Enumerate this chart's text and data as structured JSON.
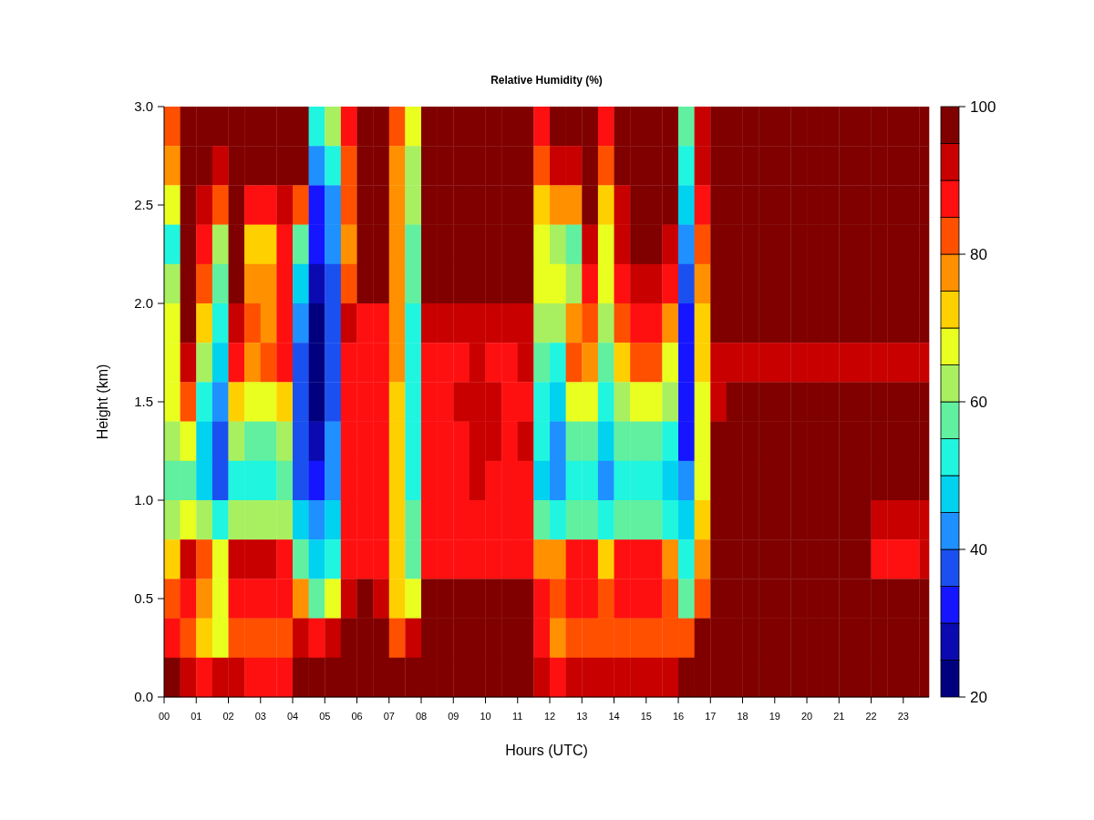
{
  "chart_data": {
    "type": "heatmap",
    "title": "Relative Humidity (%)",
    "xlabel": "Hours (UTC)",
    "ylabel": "Height (km)",
    "clabel": null,
    "x": [
      0.25,
      0.75,
      1.25,
      1.75,
      2.25,
      2.75,
      3.25,
      3.75,
      4.25,
      4.75,
      5.25,
      5.75,
      6.25,
      6.75,
      7.25,
      7.75,
      8.25,
      8.75,
      9.25,
      9.75,
      10.25,
      10.75,
      11.25,
      11.75,
      12.25,
      12.75,
      13.25,
      13.75,
      14.25,
      14.75,
      15.25,
      15.75,
      16.25,
      16.75,
      17.25,
      17.75,
      18.25,
      18.75,
      19.25,
      19.75,
      20.25,
      20.75,
      21.25,
      21.75,
      22.25,
      22.75,
      23.25,
      23.75
    ],
    "y": [
      2.9,
      2.7,
      2.5,
      2.3,
      2.1,
      1.9,
      1.7,
      1.5,
      1.3,
      1.1,
      0.9,
      0.7,
      0.5,
      0.3,
      0.1
    ],
    "xlim": [
      0,
      23.8
    ],
    "xticks": [
      {
        "value": 0,
        "label": "00"
      },
      {
        "value": 1,
        "label": "01"
      },
      {
        "value": 2,
        "label": "02"
      },
      {
        "value": 3,
        "label": "03"
      },
      {
        "value": 4,
        "label": "04"
      },
      {
        "value": 5,
        "label": "05"
      },
      {
        "value": 6,
        "label": "06"
      },
      {
        "value": 7,
        "label": "07"
      },
      {
        "value": 8,
        "label": "08"
      },
      {
        "value": 9,
        "label": "09"
      },
      10,
      11,
      12,
      13,
      14,
      15,
      16,
      17,
      18,
      19,
      20,
      21,
      22,
      23
    ],
    "ylim": [
      0,
      3
    ],
    "yticks": [
      {
        "value": 0,
        "label": "0.0"
      },
      0.5,
      {
        "value": 1,
        "label": "1.0"
      },
      1.5,
      {
        "value": 2,
        "label": "2.0"
      },
      2.5,
      {
        "value": 3,
        "label": "3.0"
      }
    ],
    "clim": [
      20,
      100
    ],
    "cticks": [
      20,
      40,
      60,
      80,
      100
    ],
    "colors": [
      "#00007f",
      "#0a0ab0",
      "#1515ff",
      "#1a50f0",
      "#1e90ff",
      "#00d2f0",
      "#20f5e0",
      "#60f0a0",
      "#a8f060",
      "#e8ff20",
      "#ffd000",
      "#ff9000",
      "#ff5000",
      "#ff1010",
      "#c80000",
      "#800000"
    ],
    "cells": [
      [
        85,
        100,
        100,
        100,
        100,
        100,
        100,
        100,
        100,
        55,
        65,
        90,
        100,
        100,
        85,
        70,
        100,
        100,
        100,
        100,
        100,
        100,
        100,
        90,
        100,
        100,
        100,
        90,
        100,
        100,
        100,
        100,
        60,
        95,
        100,
        100,
        100,
        100,
        100,
        100,
        100,
        100,
        100,
        100,
        100,
        100,
        100,
        100
      ],
      [
        80,
        100,
        100,
        95,
        100,
        100,
        100,
        100,
        100,
        45,
        55,
        85,
        100,
        100,
        80,
        65,
        100,
        100,
        100,
        100,
        100,
        100,
        100,
        85,
        95,
        95,
        100,
        85,
        100,
        100,
        100,
        100,
        55,
        95,
        100,
        100,
        100,
        100,
        100,
        100,
        100,
        100,
        100,
        100,
        100,
        100,
        100,
        100
      ],
      [
        70,
        100,
        95,
        85,
        100,
        90,
        90,
        95,
        85,
        35,
        45,
        85,
        100,
        100,
        80,
        65,
        100,
        100,
        100,
        100,
        100,
        100,
        100,
        75,
        80,
        80,
        100,
        75,
        95,
        100,
        100,
        100,
        50,
        90,
        100,
        100,
        100,
        100,
        100,
        100,
        100,
        100,
        100,
        100,
        100,
        100,
        100,
        100
      ],
      [
        55,
        100,
        90,
        65,
        100,
        75,
        75,
        90,
        60,
        35,
        45,
        80,
        100,
        100,
        80,
        60,
        100,
        100,
        100,
        100,
        100,
        100,
        100,
        70,
        65,
        60,
        95,
        70,
        95,
        100,
        100,
        95,
        45,
        85,
        100,
        100,
        100,
        100,
        100,
        100,
        100,
        100,
        100,
        100,
        100,
        100,
        100,
        100
      ],
      [
        65,
        100,
        85,
        60,
        100,
        80,
        80,
        90,
        50,
        30,
        40,
        85,
        100,
        100,
        80,
        60,
        100,
        100,
        100,
        100,
        100,
        100,
        100,
        70,
        70,
        65,
        90,
        70,
        90,
        95,
        95,
        90,
        40,
        80,
        100,
        100,
        100,
        100,
        100,
        100,
        100,
        100,
        100,
        100,
        100,
        100,
        100,
        100
      ],
      [
        70,
        100,
        75,
        55,
        95,
        85,
        80,
        90,
        45,
        25,
        40,
        95,
        90,
        90,
        80,
        55,
        95,
        95,
        95,
        95,
        95,
        95,
        95,
        65,
        65,
        80,
        85,
        65,
        85,
        90,
        90,
        80,
        35,
        75,
        100,
        100,
        100,
        100,
        100,
        100,
        100,
        100,
        100,
        100,
        100,
        100,
        100,
        100
      ],
      [
        70,
        95,
        65,
        50,
        90,
        80,
        85,
        90,
        40,
        25,
        40,
        90,
        90,
        90,
        80,
        55,
        90,
        90,
        90,
        95,
        90,
        90,
        95,
        60,
        55,
        85,
        80,
        60,
        75,
        85,
        85,
        70,
        35,
        75,
        95,
        95,
        95,
        95,
        95,
        95,
        95,
        95,
        95,
        95,
        95,
        95,
        95,
        95
      ],
      [
        70,
        85,
        55,
        45,
        75,
        70,
        70,
        75,
        40,
        25,
        40,
        90,
        90,
        90,
        75,
        55,
        90,
        90,
        95,
        95,
        95,
        90,
        90,
        55,
        50,
        70,
        70,
        55,
        65,
        70,
        70,
        65,
        35,
        70,
        95,
        100,
        100,
        100,
        100,
        100,
        100,
        100,
        100,
        100,
        100,
        100,
        100,
        100
      ],
      [
        65,
        70,
        50,
        40,
        65,
        60,
        60,
        65,
        40,
        30,
        45,
        90,
        90,
        90,
        75,
        55,
        90,
        90,
        90,
        95,
        95,
        90,
        95,
        55,
        45,
        60,
        60,
        50,
        60,
        60,
        60,
        55,
        35,
        70,
        100,
        100,
        100,
        100,
        100,
        100,
        100,
        100,
        100,
        100,
        100,
        100,
        100,
        100
      ],
      [
        60,
        60,
        50,
        40,
        55,
        55,
        55,
        60,
        40,
        35,
        45,
        90,
        90,
        90,
        75,
        55,
        90,
        90,
        90,
        95,
        90,
        90,
        90,
        50,
        45,
        55,
        55,
        45,
        55,
        55,
        55,
        50,
        45,
        70,
        100,
        100,
        100,
        100,
        100,
        100,
        100,
        100,
        100,
        100,
        100,
        100,
        100,
        100
      ],
      [
        65,
        70,
        65,
        55,
        65,
        65,
        65,
        65,
        50,
        45,
        50,
        90,
        90,
        90,
        75,
        60,
        90,
        90,
        90,
        90,
        90,
        90,
        90,
        60,
        55,
        60,
        60,
        55,
        60,
        60,
        60,
        55,
        50,
        75,
        100,
        100,
        100,
        100,
        100,
        100,
        100,
        100,
        100,
        100,
        95,
        95,
        95,
        95
      ],
      [
        75,
        95,
        85,
        70,
        95,
        95,
        95,
        90,
        60,
        50,
        55,
        90,
        90,
        90,
        75,
        60,
        90,
        90,
        90,
        90,
        90,
        90,
        90,
        80,
        80,
        90,
        90,
        75,
        90,
        90,
        90,
        80,
        55,
        80,
        100,
        100,
        100,
        100,
        100,
        100,
        100,
        100,
        100,
        100,
        90,
        90,
        90,
        95
      ],
      [
        85,
        90,
        80,
        70,
        90,
        90,
        90,
        90,
        80,
        60,
        70,
        95,
        100,
        95,
        75,
        70,
        100,
        100,
        100,
        100,
        100,
        100,
        100,
        90,
        85,
        90,
        90,
        85,
        90,
        90,
        90,
        85,
        60,
        85,
        100,
        100,
        100,
        100,
        100,
        100,
        100,
        100,
        100,
        100,
        100,
        100,
        100,
        100
      ],
      [
        90,
        85,
        75,
        70,
        85,
        85,
        85,
        85,
        95,
        90,
        95,
        100,
        100,
        100,
        85,
        95,
        100,
        100,
        100,
        100,
        100,
        100,
        100,
        90,
        80,
        85,
        85,
        85,
        85,
        85,
        85,
        85,
        85,
        100,
        100,
        100,
        100,
        100,
        100,
        100,
        100,
        100,
        100,
        100,
        100,
        100,
        100,
        100
      ],
      [
        100,
        95,
        90,
        95,
        95,
        90,
        90,
        90,
        100,
        100,
        100,
        100,
        100,
        100,
        100,
        100,
        100,
        100,
        100,
        100,
        100,
        100,
        100,
        95,
        90,
        95,
        95,
        95,
        95,
        95,
        95,
        95,
        100,
        100,
        100,
        100,
        100,
        100,
        100,
        100,
        100,
        100,
        100,
        100,
        100,
        100,
        100,
        100
      ]
    ]
  }
}
